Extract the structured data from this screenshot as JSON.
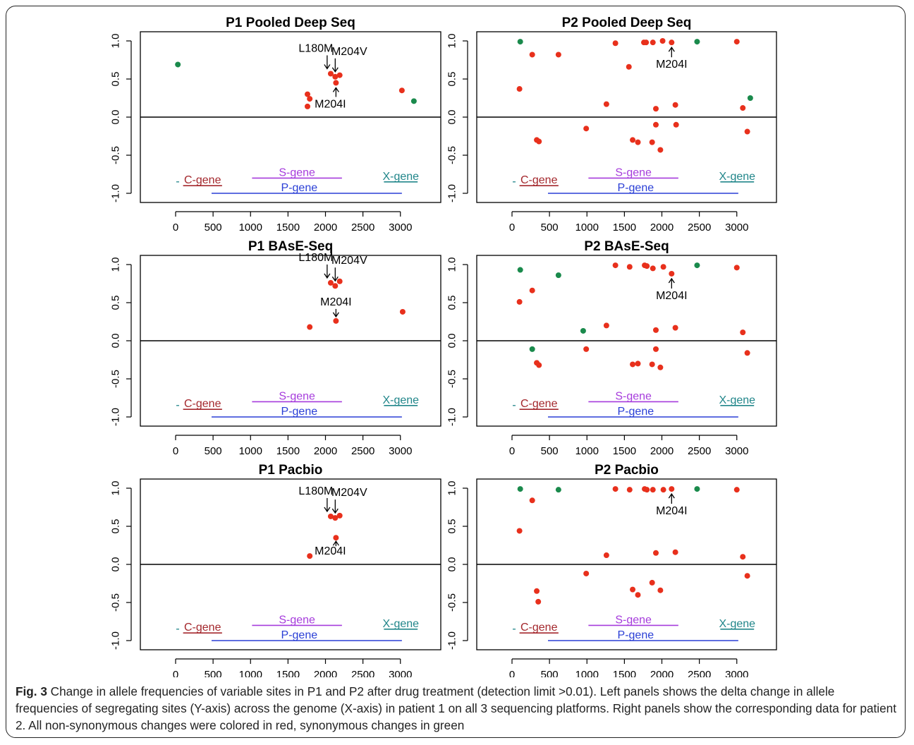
{
  "colors": {
    "nonsyn": "#e8301c",
    "syn": "#1a8a4c",
    "c_gene": "#a4282d",
    "s_gene": "#a63cdc",
    "p_gene": "#2a3fd6",
    "x_gene": "#21868a",
    "axis": "#000000"
  },
  "caption": {
    "label": "Fig. 3",
    "text": "Change in allele frequencies of variable sites in P1 and P2 after drug treatment (detection limit >0.01). Left panels shows the delta change in allele frequencies of segregating sites (Y-axis) across the genome (X-axis) in patient 1 on all 3 sequencing platforms. Right panels show the corresponding data for patient 2. All non-synonymous changes were colored in red, synonymous changes in green"
  },
  "chart_data": [
    {
      "type": "scatter",
      "title": "P1 Pooled Deep Seq",
      "xlim": [
        0,
        3200
      ],
      "ylim": [
        -1.0,
        1.0
      ],
      "x_ticks": [
        0,
        500,
        1000,
        1500,
        2000,
        2500,
        3000
      ],
      "y_ticks": [
        "-1.0",
        "-0.5",
        "0.0",
        "0.5",
        "1.0"
      ],
      "genes": [
        {
          "name": "C-gene",
          "start": 100,
          "end": 620,
          "level": -0.9,
          "color": "#a4282d"
        },
        {
          "name": "S-gene",
          "start": 1020,
          "end": 2220,
          "level": -0.8,
          "color": "#a63cdc"
        },
        {
          "name": "P-gene",
          "start": 480,
          "end": 3020,
          "level": -1.0,
          "color": "#2a3fd6"
        },
        {
          "name": "X-gene",
          "start": 2780,
          "end": 3230,
          "level": -0.85,
          "color": "#21868a"
        }
      ],
      "points_nonsyn": [
        [
          1760,
          0.3
        ],
        [
          1790,
          0.24
        ],
        [
          1760,
          0.14
        ],
        [
          2070,
          0.57
        ],
        [
          2130,
          0.53
        ],
        [
          2190,
          0.55
        ],
        [
          2140,
          0.45
        ],
        [
          3020,
          0.35
        ]
      ],
      "points_syn": [
        [
          30,
          0.69
        ],
        [
          3180,
          0.21
        ]
      ],
      "annotations": [
        {
          "text": "L180M",
          "x": 2060,
          "y": 0.57,
          "dir": "down"
        },
        {
          "text": "M204V",
          "x": 2130,
          "y": 0.53,
          "dir": "down"
        },
        {
          "text": "M204I",
          "x": 2140,
          "y": 0.45,
          "dir": "up"
        }
      ]
    },
    {
      "type": "scatter",
      "title": "P2 Pooled Deep Seq",
      "xlim": [
        0,
        3200
      ],
      "ylim": [
        -1.0,
        1.0
      ],
      "x_ticks": [
        0,
        500,
        1000,
        1500,
        2000,
        2500,
        3000
      ],
      "y_ticks": [
        "-1.0",
        "-0.5",
        "0.0",
        "0.5",
        "1.0"
      ],
      "genes": [
        {
          "name": "C-gene",
          "start": 100,
          "end": 620,
          "level": -0.9,
          "color": "#a4282d"
        },
        {
          "name": "S-gene",
          "start": 1020,
          "end": 2220,
          "level": -0.8,
          "color": "#a63cdc"
        },
        {
          "name": "P-gene",
          "start": 480,
          "end": 3020,
          "level": -1.0,
          "color": "#2a3fd6"
        },
        {
          "name": "X-gene",
          "start": 2780,
          "end": 3230,
          "level": -0.85,
          "color": "#21868a"
        }
      ],
      "points_nonsyn": [
        [
          100,
          0.37
        ],
        [
          270,
          0.82
        ],
        [
          620,
          0.82
        ],
        [
          1260,
          0.17
        ],
        [
          1380,
          0.97
        ],
        [
          1560,
          0.66
        ],
        [
          1760,
          0.98
        ],
        [
          1790,
          0.98
        ],
        [
          1880,
          0.98
        ],
        [
          2010,
          1.0
        ],
        [
          2130,
          0.98
        ],
        [
          3000,
          0.99
        ],
        [
          1920,
          0.11
        ],
        [
          2180,
          0.16
        ],
        [
          3080,
          0.12
        ],
        [
          330,
          -0.3
        ],
        [
          360,
          -0.32
        ],
        [
          990,
          -0.15
        ],
        [
          1610,
          -0.3
        ],
        [
          1680,
          -0.33
        ],
        [
          1870,
          -0.33
        ],
        [
          1980,
          -0.43
        ],
        [
          1920,
          -0.1
        ],
        [
          2190,
          -0.1
        ],
        [
          3140,
          -0.19
        ]
      ],
      "points_syn": [
        [
          110,
          0.99
        ],
        [
          2470,
          0.99
        ],
        [
          3180,
          0.25
        ]
      ],
      "annotations": [
        {
          "text": "M204I",
          "x": 2130,
          "y": 0.98,
          "dir": "up-below"
        }
      ]
    },
    {
      "type": "scatter",
      "title": "P1 BAsE-Seq",
      "xlim": [
        0,
        3200
      ],
      "ylim": [
        -1.0,
        1.0
      ],
      "x_ticks": [
        0,
        500,
        1000,
        1500,
        2000,
        2500,
        3000
      ],
      "y_ticks": [
        "-1.0",
        "-0.5",
        "0.0",
        "0.5",
        "1.0"
      ],
      "genes": [
        {
          "name": "C-gene",
          "start": 100,
          "end": 620,
          "level": -0.9,
          "color": "#a4282d"
        },
        {
          "name": "S-gene",
          "start": 1020,
          "end": 2220,
          "level": -0.8,
          "color": "#a63cdc"
        },
        {
          "name": "P-gene",
          "start": 480,
          "end": 3020,
          "level": -1.0,
          "color": "#2a3fd6"
        },
        {
          "name": "X-gene",
          "start": 2780,
          "end": 3230,
          "level": -0.85,
          "color": "#21868a"
        }
      ],
      "points_nonsyn": [
        [
          2070,
          0.76
        ],
        [
          2130,
          0.72
        ],
        [
          2190,
          0.78
        ],
        [
          2140,
          0.26
        ],
        [
          1790,
          0.18
        ],
        [
          3030,
          0.38
        ]
      ],
      "points_syn": [],
      "annotations": [
        {
          "text": "L180M",
          "x": 2060,
          "y": 0.76,
          "dir": "down"
        },
        {
          "text": "M204V",
          "x": 2130,
          "y": 0.72,
          "dir": "down"
        },
        {
          "text": "M204I",
          "x": 2140,
          "y": 0.26,
          "dir": "down-mid"
        }
      ]
    },
    {
      "type": "scatter",
      "title": "P2 BAsE-Seq",
      "xlim": [
        0,
        3200
      ],
      "ylim": [
        -1.0,
        1.0
      ],
      "x_ticks": [
        0,
        500,
        1000,
        1500,
        2000,
        2500,
        3000
      ],
      "y_ticks": [
        "-1.0",
        "-0.5",
        "0.0",
        "0.5",
        "1.0"
      ],
      "genes": [
        {
          "name": "C-gene",
          "start": 100,
          "end": 620,
          "level": -0.9,
          "color": "#a4282d"
        },
        {
          "name": "S-gene",
          "start": 1020,
          "end": 2220,
          "level": -0.8,
          "color": "#a63cdc"
        },
        {
          "name": "P-gene",
          "start": 480,
          "end": 3020,
          "level": -1.0,
          "color": "#2a3fd6"
        },
        {
          "name": "X-gene",
          "start": 2780,
          "end": 3230,
          "level": -0.85,
          "color": "#21868a"
        }
      ],
      "points_nonsyn": [
        [
          100,
          0.51
        ],
        [
          270,
          0.66
        ],
        [
          1260,
          0.2
        ],
        [
          1380,
          0.99
        ],
        [
          1570,
          0.97
        ],
        [
          1770,
          0.99
        ],
        [
          1800,
          0.98
        ],
        [
          1880,
          0.95
        ],
        [
          2020,
          0.97
        ],
        [
          2130,
          0.88
        ],
        [
          3000,
          0.96
        ],
        [
          1920,
          0.14
        ],
        [
          2180,
          0.17
        ],
        [
          3080,
          0.11
        ],
        [
          330,
          -0.29
        ],
        [
          360,
          -0.32
        ],
        [
          990,
          -0.11
        ],
        [
          1610,
          -0.31
        ],
        [
          1680,
          -0.3
        ],
        [
          1870,
          -0.31
        ],
        [
          1980,
          -0.35
        ],
        [
          1920,
          -0.11
        ],
        [
          3140,
          -0.16
        ]
      ],
      "points_syn": [
        [
          110,
          0.93
        ],
        [
          620,
          0.86
        ],
        [
          950,
          0.13
        ],
        [
          270,
          -0.11
        ],
        [
          2470,
          0.99
        ]
      ],
      "annotations": [
        {
          "text": "M204I",
          "x": 2130,
          "y": 0.88,
          "dir": "up-below"
        }
      ]
    },
    {
      "type": "scatter",
      "title": "P1 Pacbio",
      "xlim": [
        0,
        3200
      ],
      "ylim": [
        -1.0,
        1.0
      ],
      "x_ticks": [
        0,
        500,
        1000,
        1500,
        2000,
        2500,
        3000
      ],
      "y_ticks": [
        "-1.0",
        "-0.5",
        "0.0",
        "0.5",
        "1.0"
      ],
      "genes": [
        {
          "name": "C-gene",
          "start": 100,
          "end": 620,
          "level": -0.9,
          "color": "#a4282d"
        },
        {
          "name": "S-gene",
          "start": 1020,
          "end": 2220,
          "level": -0.8,
          "color": "#a63cdc"
        },
        {
          "name": "P-gene",
          "start": 480,
          "end": 3020,
          "level": -1.0,
          "color": "#2a3fd6"
        },
        {
          "name": "X-gene",
          "start": 2780,
          "end": 3230,
          "level": -0.85,
          "color": "#21868a"
        }
      ],
      "points_nonsyn": [
        [
          2070,
          0.63
        ],
        [
          2130,
          0.61
        ],
        [
          2190,
          0.64
        ],
        [
          2140,
          0.35
        ],
        [
          1790,
          0.11
        ]
      ],
      "points_syn": [],
      "annotations": [
        {
          "text": "L180M",
          "x": 2060,
          "y": 0.63,
          "dir": "down"
        },
        {
          "text": "M204V",
          "x": 2130,
          "y": 0.61,
          "dir": "down"
        },
        {
          "text": "M204I",
          "x": 2140,
          "y": 0.35,
          "dir": "up-small"
        }
      ]
    },
    {
      "type": "scatter",
      "title": "P2 Pacbio",
      "xlim": [
        0,
        3200
      ],
      "ylim": [
        -1.0,
        1.0
      ],
      "x_ticks": [
        0,
        500,
        1000,
        1500,
        2000,
        2500,
        3000
      ],
      "y_ticks": [
        "-1.0",
        "-0.5",
        "0.0",
        "0.5",
        "1.0"
      ],
      "genes": [
        {
          "name": "C-gene",
          "start": 100,
          "end": 620,
          "level": -0.9,
          "color": "#a4282d"
        },
        {
          "name": "S-gene",
          "start": 1020,
          "end": 2220,
          "level": -0.8,
          "color": "#a63cdc"
        },
        {
          "name": "P-gene",
          "start": 480,
          "end": 3020,
          "level": -1.0,
          "color": "#2a3fd6"
        },
        {
          "name": "X-gene",
          "start": 2780,
          "end": 3230,
          "level": -0.85,
          "color": "#21868a"
        }
      ],
      "points_nonsyn": [
        [
          100,
          0.44
        ],
        [
          270,
          0.84
        ],
        [
          1380,
          0.99
        ],
        [
          1570,
          0.98
        ],
        [
          1770,
          0.99
        ],
        [
          1800,
          0.98
        ],
        [
          1880,
          0.98
        ],
        [
          2020,
          0.98
        ],
        [
          2130,
          0.99
        ],
        [
          3000,
          0.98
        ],
        [
          1260,
          0.12
        ],
        [
          1920,
          0.15
        ],
        [
          2180,
          0.16
        ],
        [
          3080,
          0.1
        ],
        [
          330,
          -0.35
        ],
        [
          350,
          -0.49
        ],
        [
          990,
          -0.12
        ],
        [
          1610,
          -0.33
        ],
        [
          1680,
          -0.4
        ],
        [
          1870,
          -0.24
        ],
        [
          1980,
          -0.34
        ],
        [
          3140,
          -0.15
        ]
      ],
      "points_syn": [
        [
          110,
          0.99
        ],
        [
          620,
          0.98
        ],
        [
          2470,
          0.99
        ]
      ],
      "annotations": [
        {
          "text": "M204I",
          "x": 2130,
          "y": 0.99,
          "dir": "up-below"
        }
      ]
    }
  ]
}
